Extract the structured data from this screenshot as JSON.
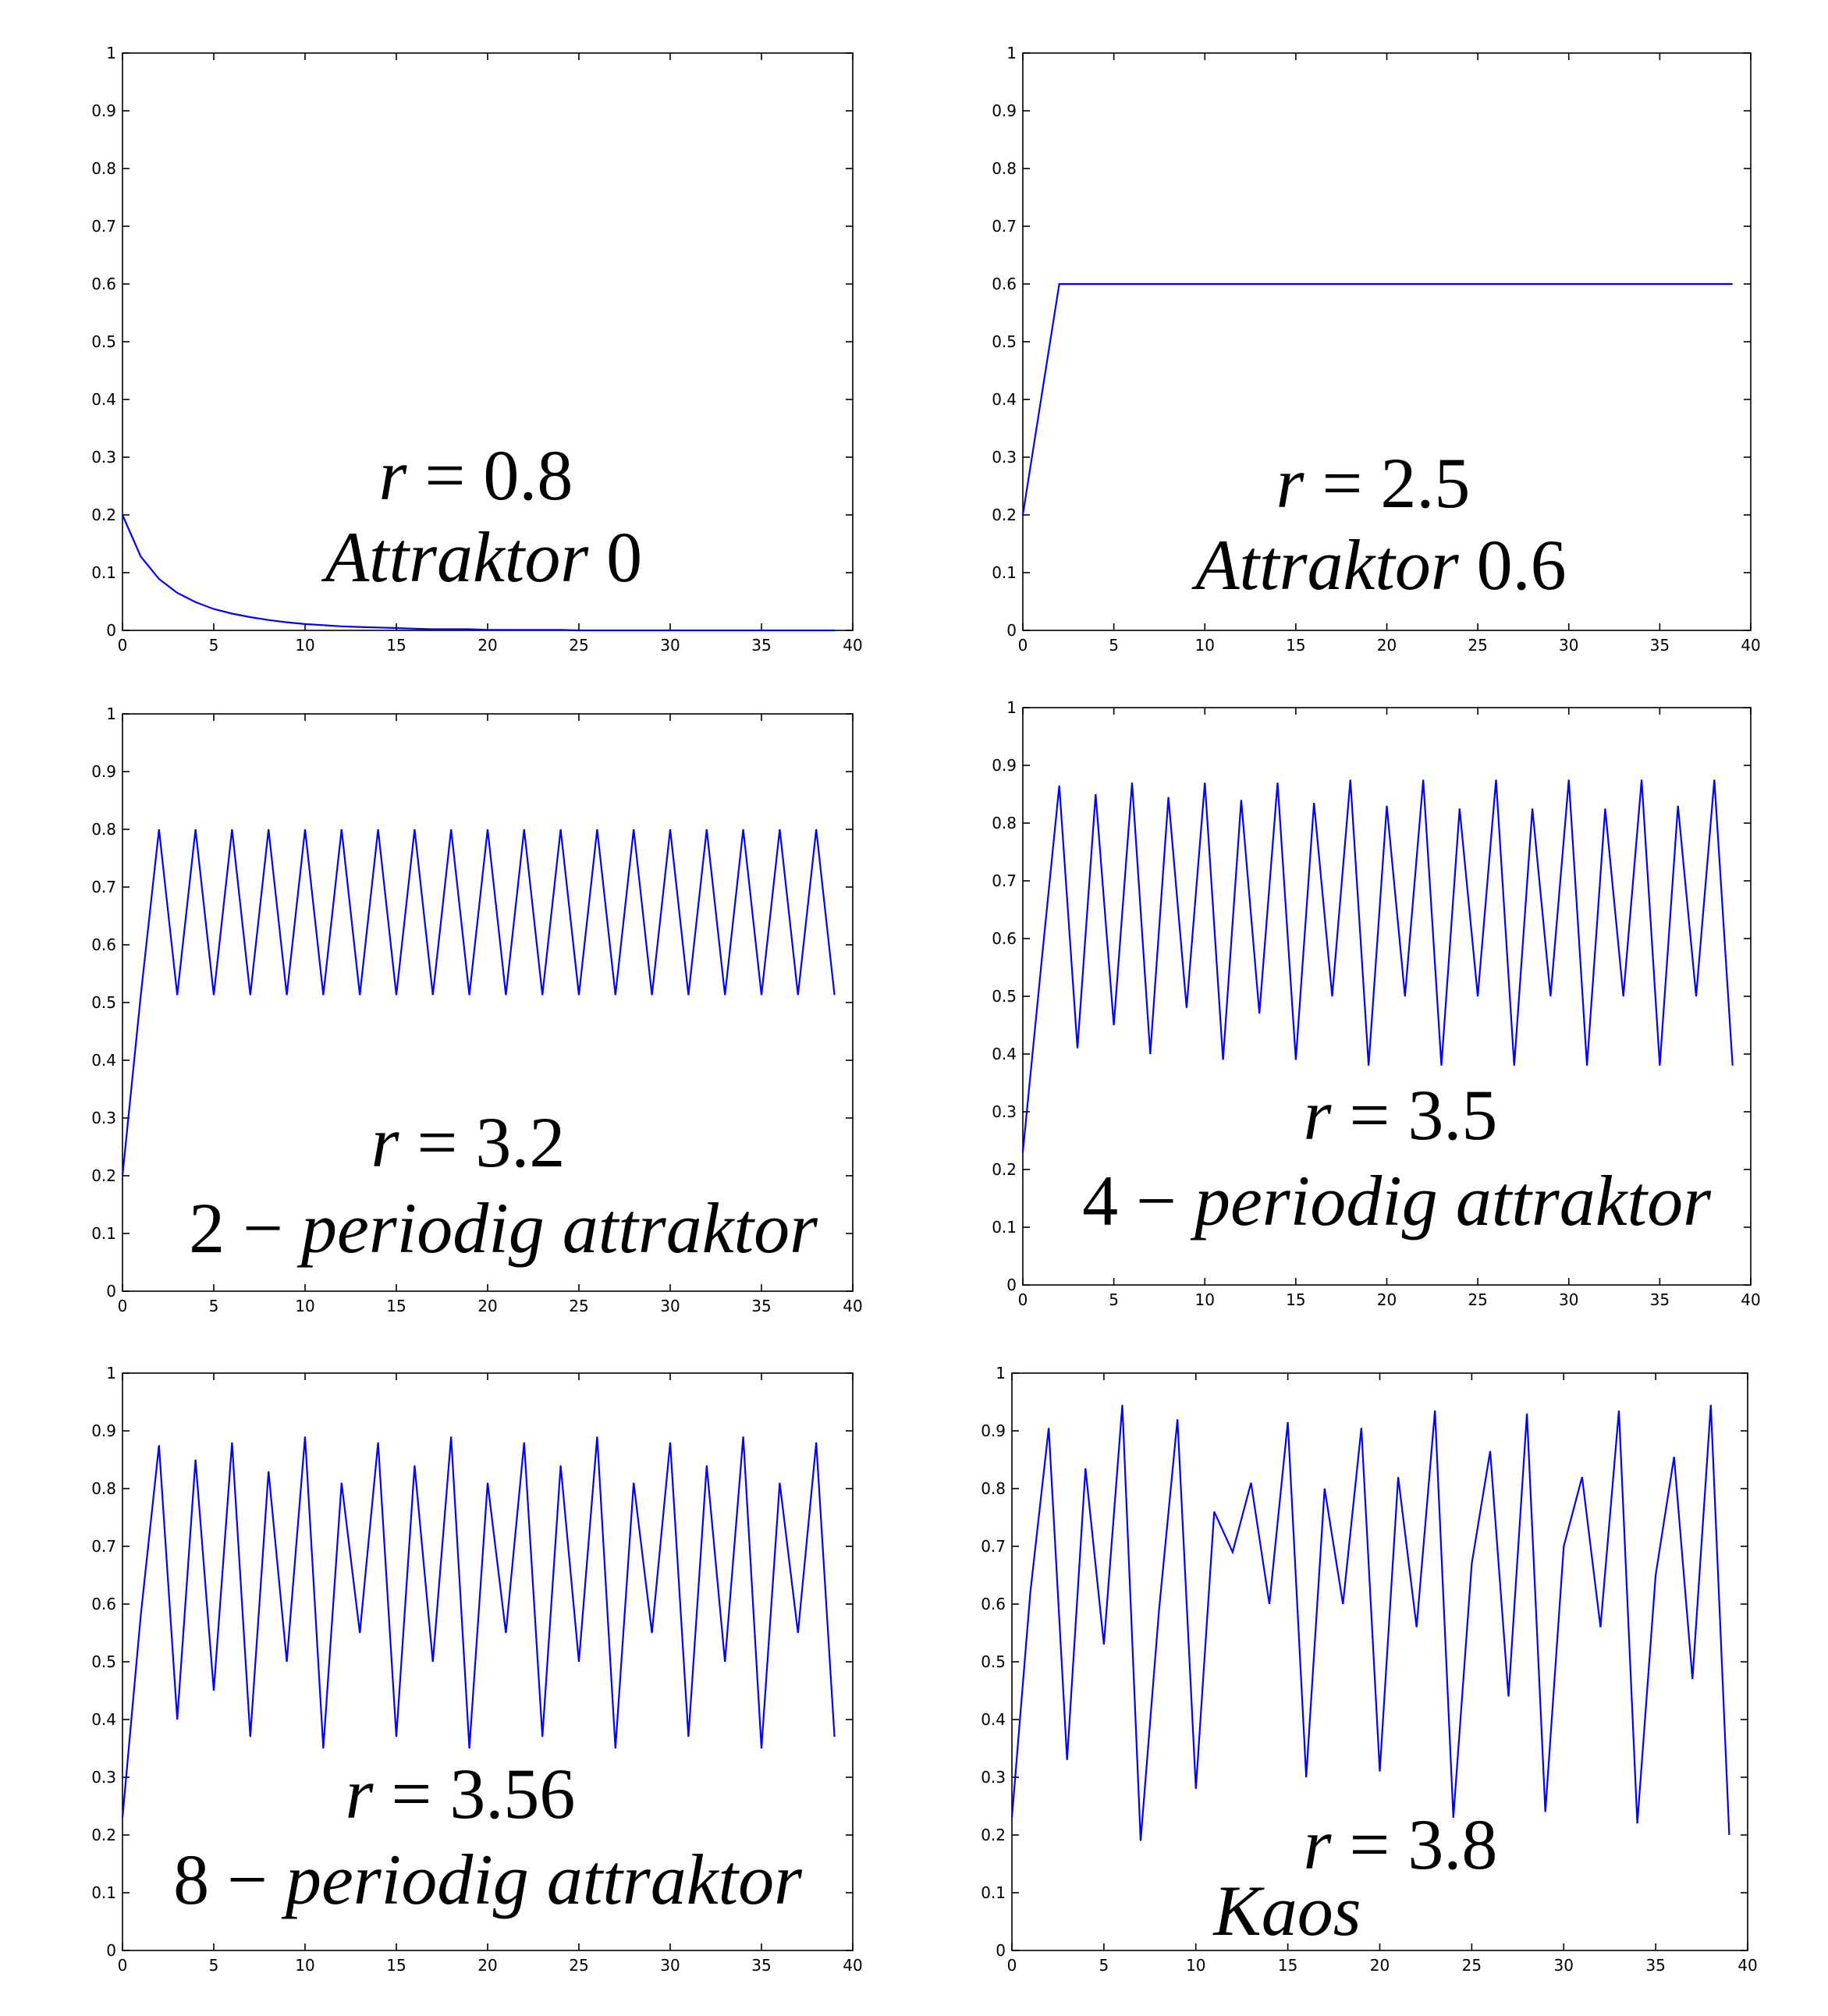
{
  "chart_data": [
    {
      "type": "line",
      "annotation": {
        "line1": "r = 0.8",
        "line2": "Attraktor 0"
      },
      "xlim": [
        0,
        40
      ],
      "ylim": [
        0,
        1
      ],
      "xticks": [
        "0",
        "5",
        "10",
        "15",
        "20",
        "25",
        "30",
        "35",
        "40"
      ],
      "yticks": [
        "0",
        "0.1",
        "0.2",
        "0.3",
        "0.4",
        "0.5",
        "0.6",
        "0.7",
        "0.8",
        "0.9",
        "1"
      ],
      "x": [
        0,
        1,
        2,
        3,
        4,
        5,
        6,
        7,
        8,
        9,
        10,
        11,
        12,
        13,
        14,
        15,
        16,
        17,
        18,
        19,
        20,
        21,
        22,
        23,
        24,
        25,
        26,
        27,
        28,
        29,
        30,
        31,
        32,
        33,
        34,
        35,
        36,
        37,
        38,
        39
      ],
      "values": [
        0.2,
        0.128,
        0.089,
        0.065,
        0.049,
        0.037,
        0.029,
        0.023,
        0.018,
        0.014,
        0.011,
        0.009,
        0.007,
        0.006,
        0.005,
        0.004,
        0.003,
        0.002,
        0.002,
        0.002,
        0.001,
        0.001,
        0.001,
        0.001,
        0.001,
        0.0,
        0.0,
        0.0,
        0.0,
        0.0,
        0.0,
        0.0,
        0.0,
        0.0,
        0.0,
        0.0,
        0.0,
        0.0,
        0.0,
        0.0
      ]
    },
    {
      "type": "line",
      "annotation": {
        "line1": "r = 2.5",
        "line2": "Attraktor 0.6"
      },
      "xlim": [
        0,
        40
      ],
      "ylim": [
        0,
        1
      ],
      "xticks": [
        "0",
        "5",
        "10",
        "15",
        "20",
        "25",
        "30",
        "35",
        "40"
      ],
      "yticks": [
        "0",
        "0.1",
        "0.2",
        "0.3",
        "0.4",
        "0.5",
        "0.6",
        "0.7",
        "0.8",
        "0.9",
        "1"
      ],
      "x": [
        0,
        1,
        2,
        3,
        4,
        5,
        6,
        7,
        8,
        9,
        10,
        11,
        12,
        13,
        14,
        15,
        16,
        17,
        18,
        19,
        20,
        21,
        22,
        23,
        24,
        25,
        26,
        27,
        28,
        29,
        30,
        31,
        32,
        33,
        34,
        35,
        36,
        37,
        38,
        39
      ],
      "values": [
        0.2,
        0.4,
        0.6,
        0.6,
        0.6,
        0.6,
        0.6,
        0.6,
        0.6,
        0.6,
        0.6,
        0.6,
        0.6,
        0.6,
        0.6,
        0.6,
        0.6,
        0.6,
        0.6,
        0.6,
        0.6,
        0.6,
        0.6,
        0.6,
        0.6,
        0.6,
        0.6,
        0.6,
        0.6,
        0.6,
        0.6,
        0.6,
        0.6,
        0.6,
        0.6,
        0.6,
        0.6,
        0.6,
        0.6,
        0.6
      ]
    },
    {
      "type": "line",
      "annotation": {
        "line1": "r = 3.2",
        "line2": "2 − periodig attraktor"
      },
      "xlim": [
        0,
        40
      ],
      "ylim": [
        0,
        1
      ],
      "xticks": [
        "0",
        "5",
        "10",
        "15",
        "20",
        "25",
        "30",
        "35",
        "40"
      ],
      "yticks": [
        "0",
        "0.1",
        "0.2",
        "0.3",
        "0.4",
        "0.5",
        "0.6",
        "0.7",
        "0.8",
        "0.9",
        "1"
      ],
      "x": [
        0,
        1,
        2,
        3,
        4,
        5,
        6,
        7,
        8,
        9,
        10,
        11,
        12,
        13,
        14,
        15,
        16,
        17,
        18,
        19,
        20,
        21,
        22,
        23,
        24,
        25,
        26,
        27,
        28,
        29,
        30,
        31,
        32,
        33,
        34,
        35,
        36,
        37,
        38,
        39
      ],
      "values": [
        0.2,
        0.512,
        0.8,
        0.513,
        0.8,
        0.513,
        0.8,
        0.513,
        0.8,
        0.513,
        0.8,
        0.513,
        0.8,
        0.513,
        0.8,
        0.513,
        0.8,
        0.513,
        0.8,
        0.513,
        0.8,
        0.513,
        0.8,
        0.513,
        0.8,
        0.513,
        0.8,
        0.513,
        0.8,
        0.513,
        0.8,
        0.513,
        0.8,
        0.513,
        0.8,
        0.513,
        0.8,
        0.513,
        0.8,
        0.513
      ]
    },
    {
      "type": "line",
      "annotation": {
        "line1": "r = 3.5",
        "line2": "4 − periodig attraktor"
      },
      "xlim": [
        0,
        40
      ],
      "ylim": [
        0,
        1
      ],
      "xticks": [
        "0",
        "5",
        "10",
        "15",
        "20",
        "25",
        "30",
        "35",
        "40"
      ],
      "yticks": [
        "0",
        "0.1",
        "0.2",
        "0.3",
        "0.4",
        "0.5",
        "0.6",
        "0.7",
        "0.8",
        "0.9",
        "1"
      ],
      "x": [
        0,
        1,
        2,
        3,
        4,
        5,
        6,
        7,
        8,
        9,
        10,
        11,
        12,
        13,
        14,
        15,
        16,
        17,
        18,
        19,
        20,
        21,
        22,
        23,
        24,
        25,
        26,
        27,
        28,
        29,
        30,
        31,
        32,
        33,
        34,
        35,
        36,
        37,
        38,
        39
      ],
      "values": [
        0.23,
        0.55,
        0.865,
        0.41,
        0.85,
        0.45,
        0.87,
        0.4,
        0.845,
        0.48,
        0.87,
        0.39,
        0.84,
        0.47,
        0.87,
        0.39,
        0.835,
        0.5,
        0.875,
        0.38,
        0.83,
        0.5,
        0.875,
        0.38,
        0.825,
        0.5,
        0.875,
        0.38,
        0.825,
        0.5,
        0.875,
        0.38,
        0.825,
        0.5,
        0.875,
        0.38,
        0.83,
        0.5,
        0.875,
        0.38
      ]
    },
    {
      "type": "line",
      "annotation": {
        "line1": "r = 3.56",
        "line2": "8 − periodig attraktor"
      },
      "xlim": [
        0,
        40
      ],
      "ylim": [
        0,
        1
      ],
      "xticks": [
        "0",
        "5",
        "10",
        "15",
        "20",
        "25",
        "30",
        "35",
        "40"
      ],
      "yticks": [
        "0",
        "0.1",
        "0.2",
        "0.3",
        "0.4",
        "0.5",
        "0.6",
        "0.7",
        "0.8",
        "0.9",
        "1"
      ],
      "x": [
        0,
        1,
        2,
        3,
        4,
        5,
        6,
        7,
        8,
        9,
        10,
        11,
        12,
        13,
        14,
        15,
        16,
        17,
        18,
        19,
        20,
        21,
        22,
        23,
        24,
        25,
        26,
        27,
        28,
        29,
        30,
        31,
        32,
        33,
        34,
        35,
        36,
        37,
        38,
        39
      ],
      "values": [
        0.23,
        0.58,
        0.875,
        0.4,
        0.85,
        0.45,
        0.88,
        0.37,
        0.83,
        0.5,
        0.89,
        0.35,
        0.81,
        0.55,
        0.88,
        0.37,
        0.84,
        0.5,
        0.89,
        0.35,
        0.81,
        0.55,
        0.88,
        0.37,
        0.84,
        0.5,
        0.89,
        0.35,
        0.81,
        0.55,
        0.88,
        0.37,
        0.84,
        0.5,
        0.89,
        0.35,
        0.81,
        0.55,
        0.88,
        0.37
      ]
    },
    {
      "type": "line",
      "annotation": {
        "line1": "r = 3.8",
        "line2": "Kaos"
      },
      "xlim": [
        0,
        40
      ],
      "ylim": [
        0,
        1
      ],
      "xticks": [
        "0",
        "5",
        "10",
        "15",
        "20",
        "25",
        "30",
        "35",
        "40"
      ],
      "yticks": [
        "0",
        "0.1",
        "0.2",
        "0.3",
        "0.4",
        "0.5",
        "0.6",
        "0.7",
        "0.8",
        "0.9",
        "1"
      ],
      "x": [
        0,
        1,
        2,
        3,
        4,
        5,
        6,
        7,
        8,
        9,
        10,
        11,
        12,
        13,
        14,
        15,
        16,
        17,
        18,
        19,
        20,
        21,
        22,
        23,
        24,
        25,
        26,
        27,
        28,
        29,
        30,
        31,
        32,
        33,
        34,
        35,
        36,
        37,
        38,
        39
      ],
      "values": [
        0.23,
        0.62,
        0.905,
        0.33,
        0.835,
        0.53,
        0.945,
        0.19,
        0.59,
        0.92,
        0.28,
        0.76,
        0.69,
        0.81,
        0.6,
        0.915,
        0.3,
        0.8,
        0.6,
        0.905,
        0.31,
        0.82,
        0.56,
        0.935,
        0.23,
        0.67,
        0.865,
        0.44,
        0.93,
        0.24,
        0.7,
        0.82,
        0.56,
        0.935,
        0.22,
        0.65,
        0.855,
        0.47,
        0.945,
        0.2
      ]
    }
  ]
}
